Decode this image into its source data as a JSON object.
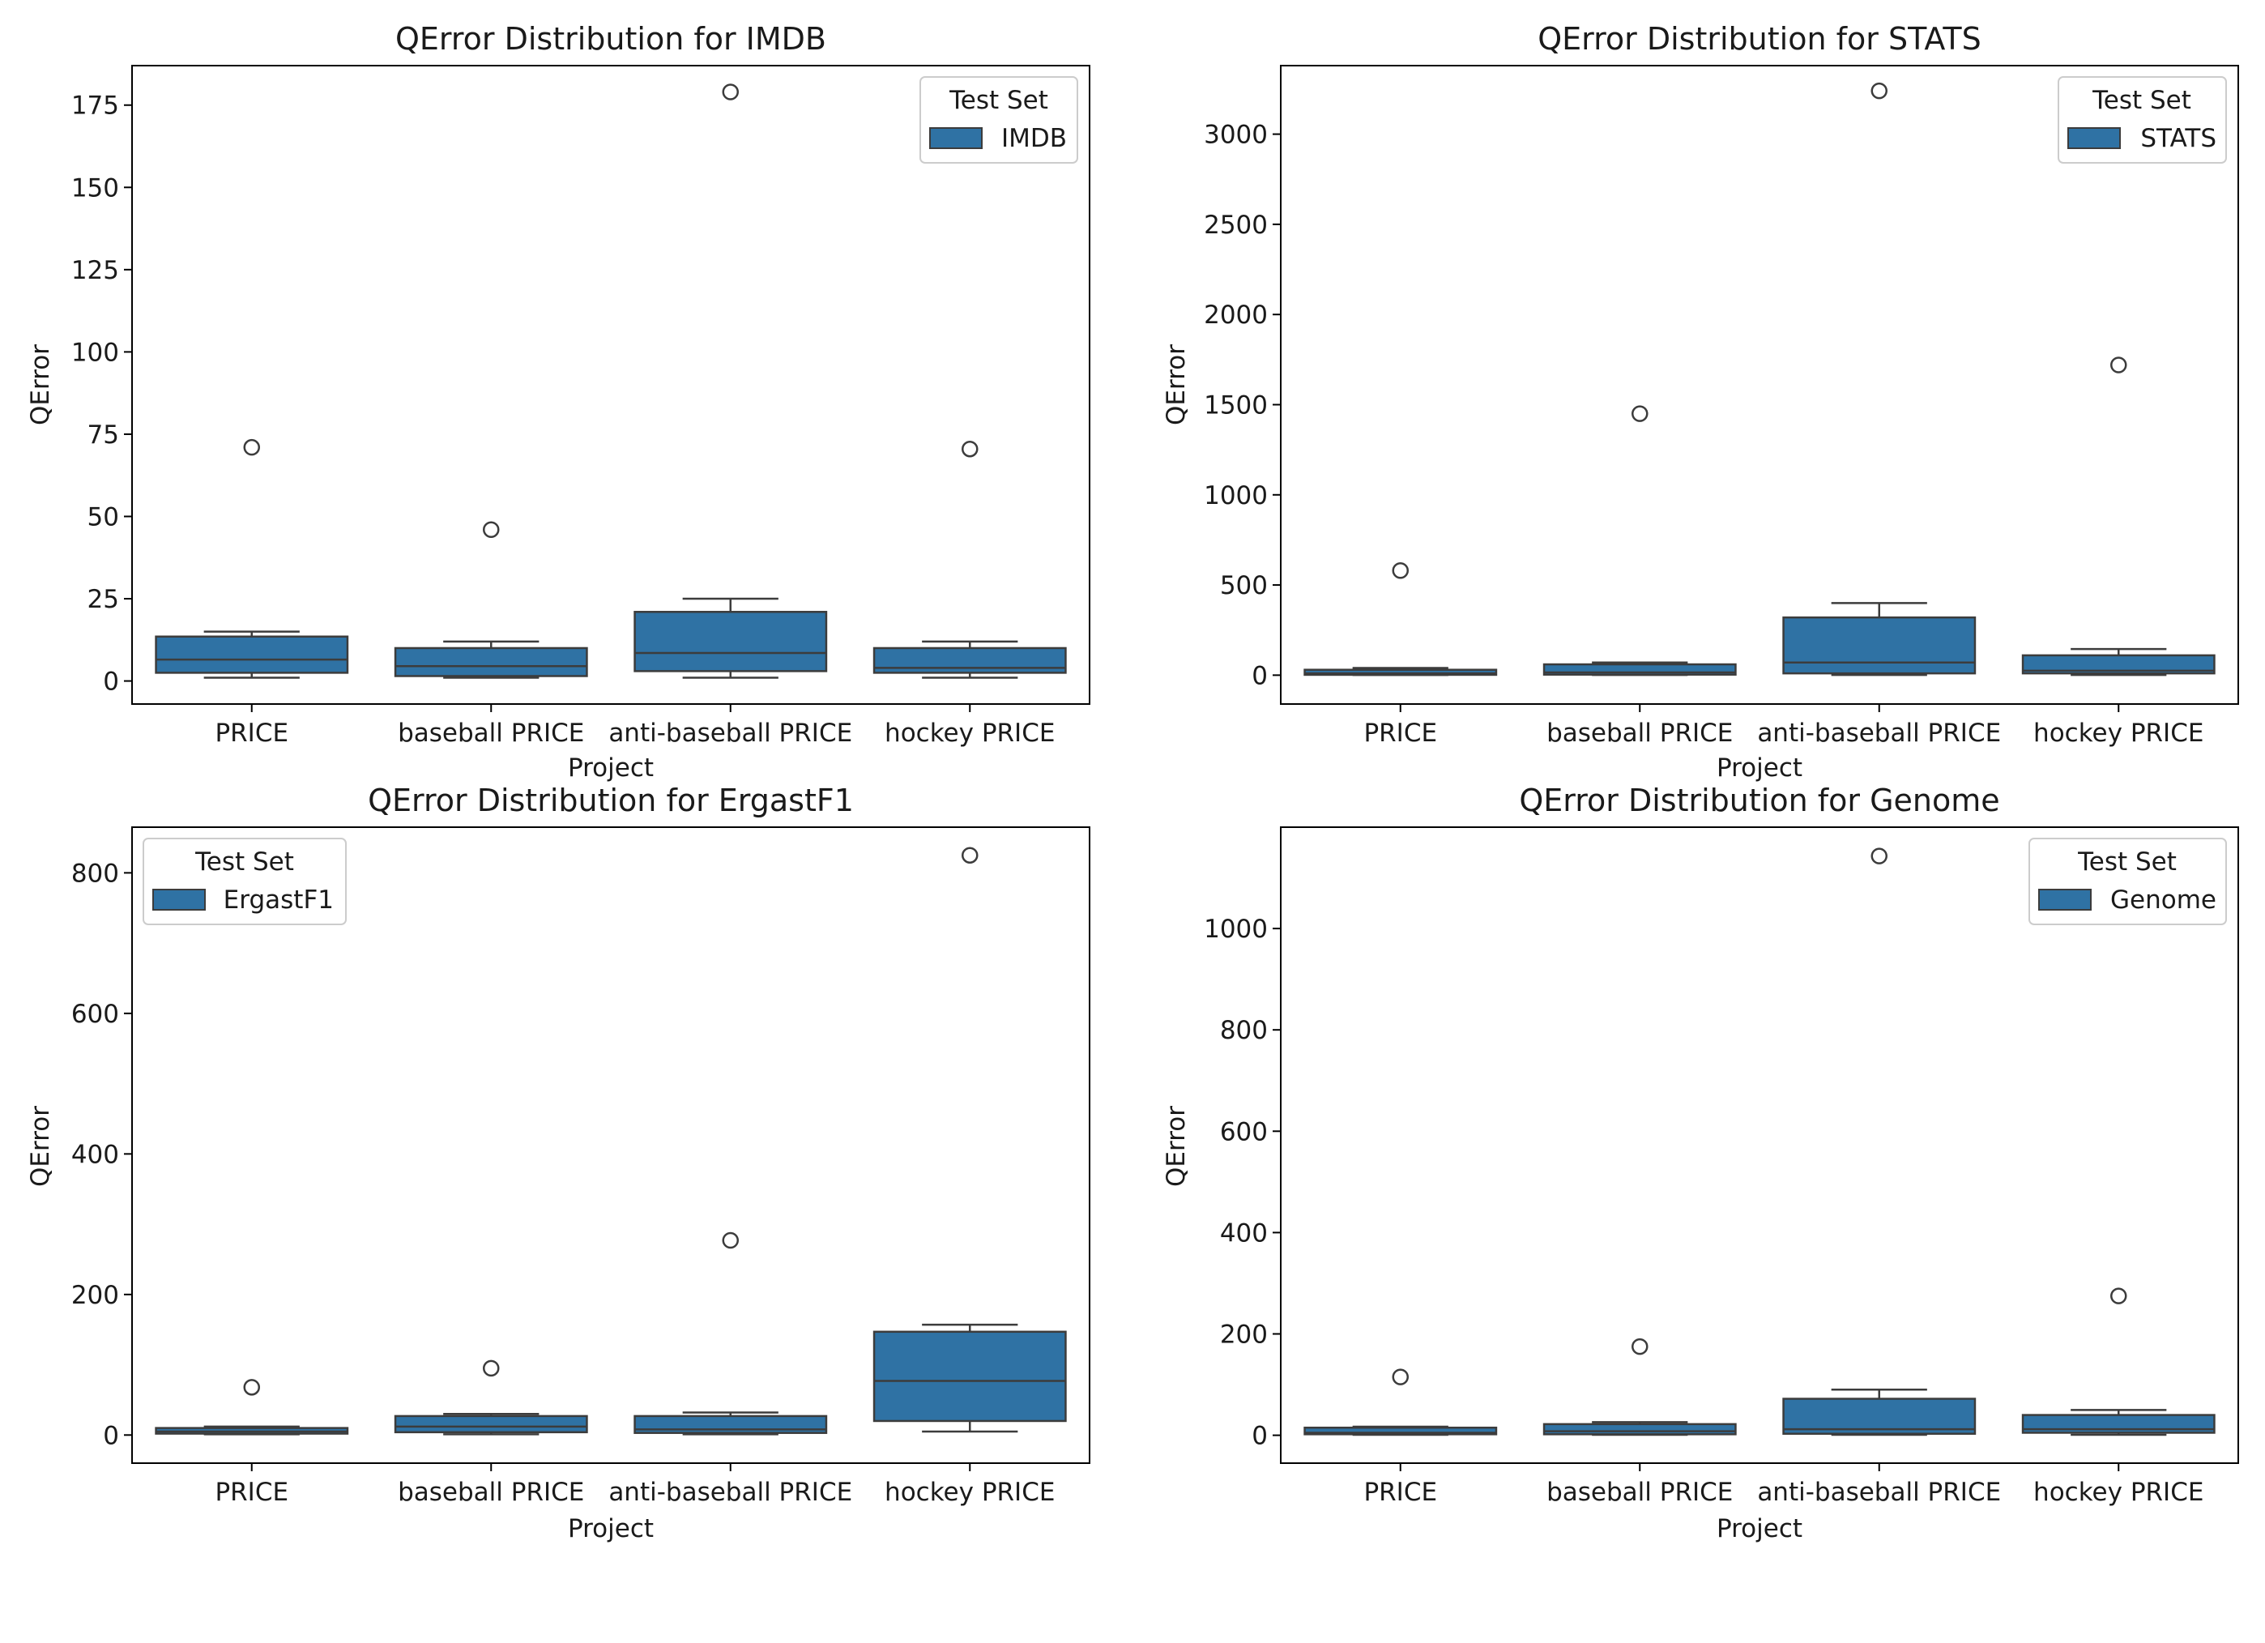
{
  "chart_data": [
    {
      "type": "box",
      "title": "QError Distribution for IMDB",
      "xlabel": "Project",
      "ylabel": "QError",
      "ylim": [
        -7,
        187
      ],
      "yticks": [
        0,
        25,
        50,
        75,
        100,
        125,
        150,
        175
      ],
      "categories": [
        "PRICE",
        "baseball PRICE",
        "anti-baseball PRICE",
        "hockey PRICE"
      ],
      "legend": {
        "title": "Test Set",
        "label": "IMDB",
        "position": "top-right"
      },
      "boxes": [
        {
          "whisker_low": 1,
          "q1": 2.5,
          "median": 6.5,
          "q3": 13.5,
          "whisker_high": 15,
          "outliers": [
            71
          ]
        },
        {
          "whisker_low": 1,
          "q1": 1.5,
          "median": 4.5,
          "q3": 10,
          "whisker_high": 12,
          "outliers": [
            46
          ]
        },
        {
          "whisker_low": 1,
          "q1": 3,
          "median": 8.5,
          "q3": 21,
          "whisker_high": 25,
          "outliers": [
            179
          ]
        },
        {
          "whisker_low": 1,
          "q1": 2.5,
          "median": 4,
          "q3": 10,
          "whisker_high": 12,
          "outliers": [
            70.5
          ]
        }
      ]
    },
    {
      "type": "box",
      "title": "QError Distribution for STATS",
      "xlabel": "Project",
      "ylabel": "QError",
      "ylim": [
        -160,
        3380
      ],
      "yticks": [
        0,
        500,
        1000,
        1500,
        2000,
        2500,
        3000
      ],
      "categories": [
        "PRICE",
        "baseball PRICE",
        "anti-baseball PRICE",
        "hockey PRICE"
      ],
      "legend": {
        "title": "Test Set",
        "label": "STATS",
        "position": "top-right"
      },
      "boxes": [
        {
          "whisker_low": 1,
          "q1": 2,
          "median": 10,
          "q3": 30,
          "whisker_high": 40,
          "outliers": [
            580
          ]
        },
        {
          "whisker_low": 1,
          "q1": 3,
          "median": 15,
          "q3": 60,
          "whisker_high": 70,
          "outliers": [
            1450
          ]
        },
        {
          "whisker_low": 1,
          "q1": 10,
          "median": 70,
          "q3": 320,
          "whisker_high": 400,
          "outliers": [
            3240
          ]
        },
        {
          "whisker_low": 1,
          "q1": 10,
          "median": 25,
          "q3": 110,
          "whisker_high": 145,
          "outliers": [
            1720
          ]
        }
      ]
    },
    {
      "type": "box",
      "title": "QError Distribution for ErgastF1",
      "xlabel": "Project",
      "ylabel": "QError",
      "ylim": [
        -40,
        865
      ],
      "yticks": [
        0,
        200,
        400,
        600,
        800
      ],
      "categories": [
        "PRICE",
        "baseball PRICE",
        "anti-baseball PRICE",
        "hockey PRICE"
      ],
      "legend": {
        "title": "Test Set",
        "label": "ErgastF1",
        "position": "top-left"
      },
      "boxes": [
        {
          "whisker_low": 1,
          "q1": 2,
          "median": 5,
          "q3": 10,
          "whisker_high": 12,
          "outliers": [
            68
          ]
        },
        {
          "whisker_low": 1,
          "q1": 4,
          "median": 12,
          "q3": 27,
          "whisker_high": 30,
          "outliers": [
            95
          ]
        },
        {
          "whisker_low": 1,
          "q1": 3,
          "median": 8,
          "q3": 27,
          "whisker_high": 32,
          "outliers": [
            277
          ]
        },
        {
          "whisker_low": 5,
          "q1": 20,
          "median": 77,
          "q3": 147,
          "whisker_high": 157,
          "outliers": [
            825
          ]
        }
      ]
    },
    {
      "type": "box",
      "title": "QError Distribution for Genome",
      "xlabel": "Project",
      "ylabel": "QError",
      "ylim": [
        -55,
        1200
      ],
      "yticks": [
        0,
        200,
        400,
        600,
        800,
        1000
      ],
      "categories": [
        "PRICE",
        "baseball PRICE",
        "anti-baseball PRICE",
        "hockey PRICE"
      ],
      "legend": {
        "title": "Test Set",
        "label": "Genome",
        "position": "top-right"
      },
      "boxes": [
        {
          "whisker_low": 1,
          "q1": 2,
          "median": 5,
          "q3": 15,
          "whisker_high": 17,
          "outliers": [
            115
          ]
        },
        {
          "whisker_low": 1,
          "q1": 2,
          "median": 8,
          "q3": 22,
          "whisker_high": 26,
          "outliers": [
            175
          ]
        },
        {
          "whisker_low": 1,
          "q1": 3,
          "median": 12,
          "q3": 72,
          "whisker_high": 90,
          "outliers": [
            1143
          ]
        },
        {
          "whisker_low": 1,
          "q1": 5,
          "median": 12,
          "q3": 40,
          "whisker_high": 50,
          "outliers": [
            275
          ]
        }
      ]
    }
  ],
  "colors": {
    "box_fill": "#2f72a4",
    "box_edge": "#3c3c3c",
    "axis": "#000000",
    "legend_border": "#cccccc"
  }
}
